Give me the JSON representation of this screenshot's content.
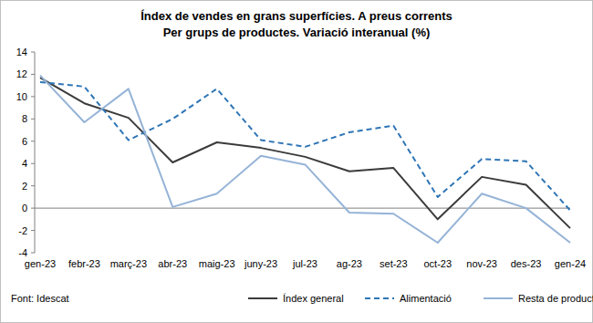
{
  "chart_data": {
    "type": "line",
    "title": "Índex de vendes en grans superfícies. A preus corrents",
    "subtitle": "Per grups de productes. Variació interanual (%)",
    "source": "Font: Idescat",
    "categories": [
      "gen-23",
      "febr-23",
      "març-23",
      "abr-23",
      "maig-23",
      "juny-23",
      "jul-23",
      "ag-23",
      "set-23",
      "oct-23",
      "nov-23",
      "des-23",
      "gen-24"
    ],
    "series": [
      {
        "name": "Índex general",
        "color": "#3b3b3b",
        "line_style": "solid",
        "values": [
          11.7,
          9.4,
          8.1,
          4.1,
          5.9,
          5.4,
          4.6,
          3.3,
          3.6,
          -1.0,
          2.8,
          2.1,
          -1.8
        ]
      },
      {
        "name": "Alimentació",
        "color": "#2e75b6",
        "line_style": "dashed",
        "values": [
          11.3,
          10.9,
          6.1,
          8.0,
          10.7,
          6.1,
          5.5,
          6.8,
          7.4,
          1.0,
          4.4,
          4.2,
          -0.2
        ]
      },
      {
        "name": "Resta de productes",
        "color": "#95b3d7",
        "line_style": "solid",
        "values": [
          11.9,
          7.7,
          10.7,
          0.1,
          1.3,
          4.7,
          3.9,
          -0.4,
          -0.5,
          -3.1,
          1.3,
          0.0,
          -3.1
        ]
      }
    ],
    "ylim": [
      -4,
      14
    ],
    "yticks": [
      -4,
      -2,
      0,
      2,
      4,
      6,
      8,
      10,
      12,
      14
    ],
    "grid": false,
    "legend": "bottom"
  }
}
